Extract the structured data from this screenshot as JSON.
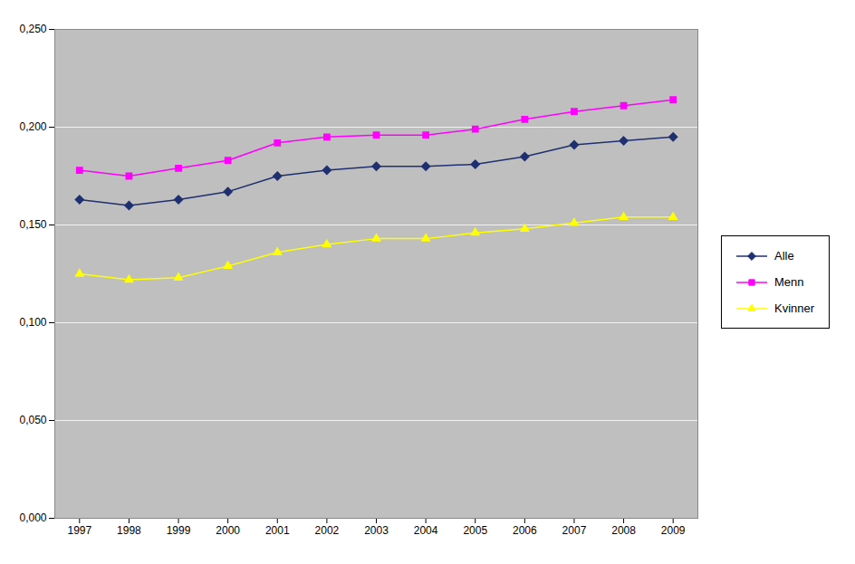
{
  "chart_data": {
    "type": "line",
    "x": [
      1997,
      1998,
      1999,
      2000,
      2001,
      2002,
      2003,
      2004,
      2005,
      2006,
      2007,
      2008,
      2009
    ],
    "series": [
      {
        "name": "Alle",
        "color": "#1f3070",
        "marker": "diamond",
        "values": [
          0.163,
          0.16,
          0.163,
          0.167,
          0.175,
          0.178,
          0.18,
          0.18,
          0.181,
          0.185,
          0.191,
          0.193,
          0.195
        ]
      },
      {
        "name": "Menn",
        "color": "#ff00ff",
        "marker": "square",
        "values": [
          0.178,
          0.175,
          0.179,
          0.183,
          0.192,
          0.195,
          0.196,
          0.196,
          0.199,
          0.204,
          0.208,
          0.211,
          0.214
        ]
      },
      {
        "name": "Kvinner",
        "color": "#ffff00",
        "marker": "triangle",
        "values": [
          0.125,
          0.122,
          0.123,
          0.129,
          0.136,
          0.14,
          0.143,
          0.143,
          0.146,
          0.148,
          0.151,
          0.154,
          0.154
        ]
      }
    ],
    "xlim": [
      1996.5,
      2009.5
    ],
    "xticks": [
      1997,
      1998,
      1999,
      2000,
      2001,
      2002,
      2003,
      2004,
      2005,
      2006,
      2007,
      2008,
      2009
    ],
    "ylim": [
      0.0,
      0.25
    ],
    "yticks": [
      {
        "value": 0.0,
        "label": "0,000"
      },
      {
        "value": 0.05,
        "label": "0,050"
      },
      {
        "value": 0.1,
        "label": "0,100"
      },
      {
        "value": 0.15,
        "label": "0,150"
      },
      {
        "value": 0.2,
        "label": "0,200"
      },
      {
        "value": 0.25,
        "label": "0,250"
      }
    ],
    "grid": true,
    "legend": "right"
  }
}
